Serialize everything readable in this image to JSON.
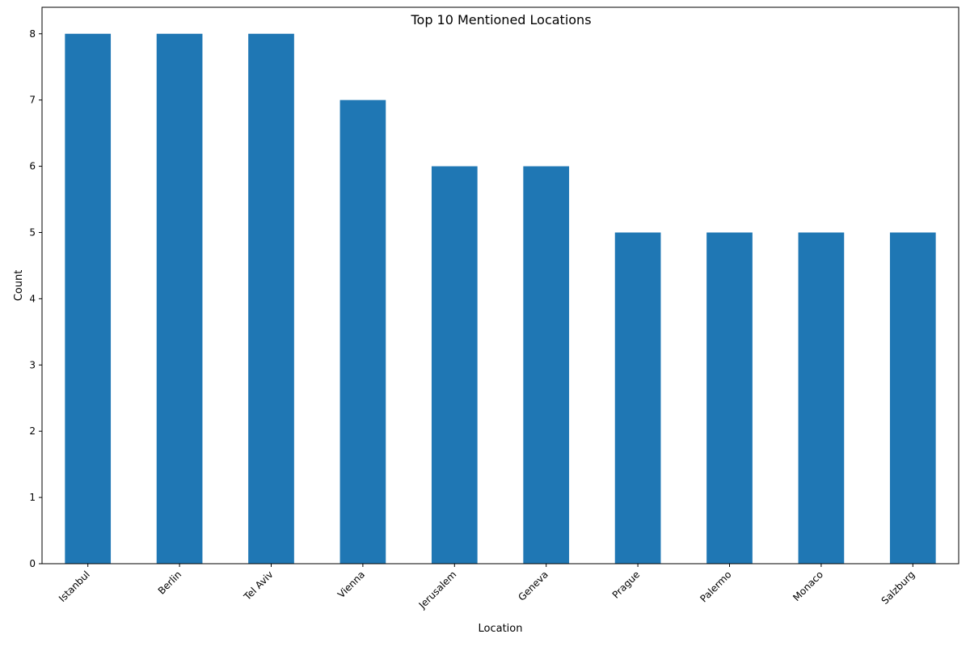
{
  "chart_data": {
    "type": "bar",
    "title": "Top 10 Mentioned Locations",
    "xlabel": "Location",
    "ylabel": "Count",
    "categories": [
      "Istanbul",
      "Berlin",
      "Tel Aviv",
      "Vienna",
      "Jerusalem",
      "Geneva",
      "Prague",
      "Palermo",
      "Monaco",
      "Salzburg"
    ],
    "values": [
      8,
      8,
      8,
      7,
      6,
      6,
      5,
      5,
      5,
      5
    ],
    "ylim": [
      0,
      8.4
    ],
    "yticks": [
      0,
      1,
      2,
      3,
      4,
      5,
      6,
      7,
      8
    ],
    "bar_color": "#1f77b4",
    "grid": false,
    "legend": "none"
  }
}
